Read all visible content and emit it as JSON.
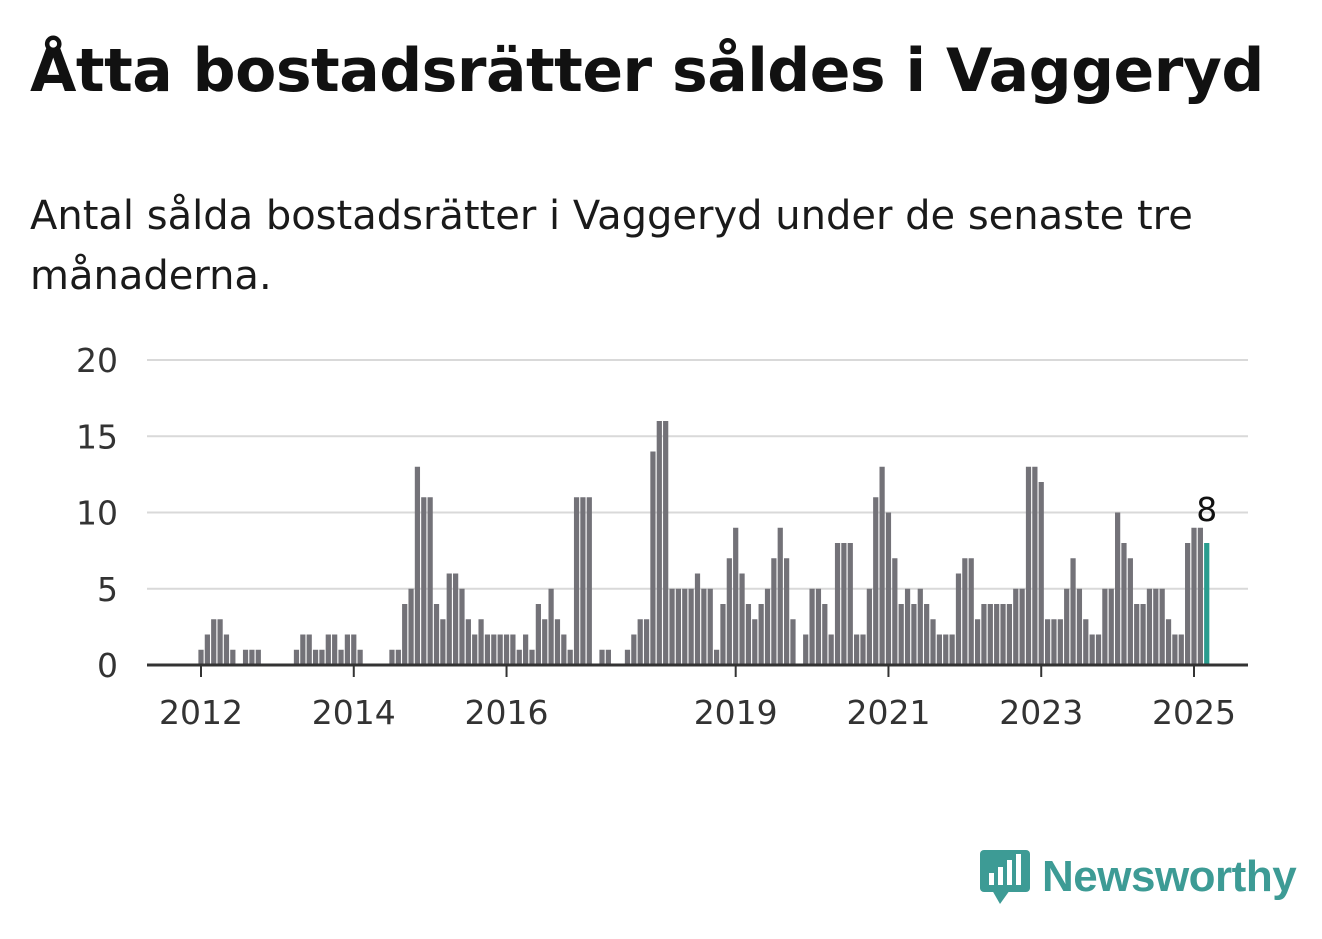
{
  "title": "Åtta bostadsrätter såldes i Vaggeryd",
  "subtitle": "Antal sålda bostadsrätter i Vaggeryd under de senaste tre månaderna.",
  "brand": {
    "name": "Newsworthy",
    "color": "#3d9b95",
    "icon": "bar-chart-speech-bubble-icon"
  },
  "chart_data": {
    "type": "bar",
    "title": "",
    "xlabel": "",
    "ylabel": "",
    "ylim": [
      0,
      20
    ],
    "yticks": [
      0,
      5,
      10,
      15,
      20
    ],
    "grid": true,
    "x_start": "2011-04",
    "x_ticks": [
      {
        "label": "2012",
        "month": "2012-01"
      },
      {
        "label": "2014",
        "month": "2014-01"
      },
      {
        "label": "2016",
        "month": "2016-01"
      },
      {
        "label": "2019",
        "month": "2019-01"
      },
      {
        "label": "2021",
        "month": "2021-01"
      },
      {
        "label": "2023",
        "month": "2023-01"
      },
      {
        "label": "2025",
        "month": "2025-01"
      }
    ],
    "bar_color": "#737278",
    "highlight_color": "#2a9d8f",
    "highlight_value_label": "8",
    "values": [
      0,
      0,
      0,
      0,
      0,
      0,
      0,
      0,
      0,
      1,
      2,
      3,
      3,
      2,
      1,
      0,
      1,
      1,
      1,
      0,
      0,
      0,
      0,
      0,
      1,
      2,
      2,
      1,
      1,
      2,
      2,
      1,
      2,
      2,
      1,
      0,
      0,
      0,
      0,
      1,
      1,
      4,
      5,
      13,
      11,
      11,
      4,
      3,
      6,
      6,
      5,
      3,
      2,
      3,
      2,
      2,
      2,
      2,
      2,
      1,
      2,
      1,
      4,
      3,
      5,
      3,
      2,
      1,
      11,
      11,
      11,
      0,
      1,
      1,
      0,
      0,
      1,
      2,
      3,
      3,
      14,
      16,
      16,
      5,
      5,
      5,
      5,
      6,
      5,
      5,
      1,
      4,
      7,
      9,
      6,
      4,
      3,
      4,
      5,
      7,
      9,
      7,
      3,
      0,
      2,
      5,
      5,
      4,
      2,
      8,
      8,
      8,
      2,
      2,
      5,
      11,
      13,
      10,
      7,
      4,
      5,
      4,
      5,
      4,
      3,
      2,
      2,
      2,
      6,
      7,
      7,
      3,
      4,
      4,
      4,
      4,
      4,
      5,
      5,
      13,
      13,
      12,
      3,
      3,
      3,
      5,
      7,
      5,
      3,
      2,
      2,
      5,
      5,
      10,
      8,
      7,
      4,
      4,
      5,
      5,
      5,
      3,
      2,
      2,
      8,
      9,
      9,
      8
    ]
  }
}
